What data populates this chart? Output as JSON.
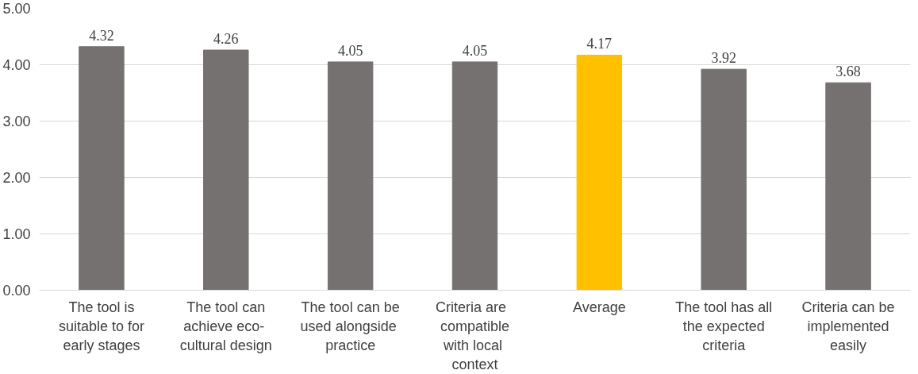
{
  "chart_data": {
    "type": "bar",
    "categories": [
      "The tool is\nsuitable to for\nearly stages",
      "The tool can\nachieve  eco-\ncultural design",
      "The tool can be\nused  alongside\npractice",
      "Criteria   are\ncompatible\nwith  local\ncontext",
      "Average",
      "The tool has all\nthe expected\ncriteria",
      "Criteria can be\nimplemented\neasily"
    ],
    "values": [
      4.32,
      4.26,
      4.05,
      4.05,
      4.17,
      3.92,
      3.68
    ],
    "colors": [
      "#767171",
      "#767171",
      "#767171",
      "#767171",
      "#ffc000",
      "#767171",
      "#767171"
    ],
    "ylim": [
      0,
      5
    ],
    "yticks": [
      {
        "value": 0,
        "label": "0.00"
      },
      {
        "value": 1,
        "label": "1.00"
      },
      {
        "value": 2,
        "label": "2.00"
      },
      {
        "value": 3,
        "label": "3.00"
      },
      {
        "value": 4,
        "label": "4.00"
      },
      {
        "value": 5,
        "label": "5.00"
      }
    ],
    "grid": "y",
    "data_labels": true
  }
}
